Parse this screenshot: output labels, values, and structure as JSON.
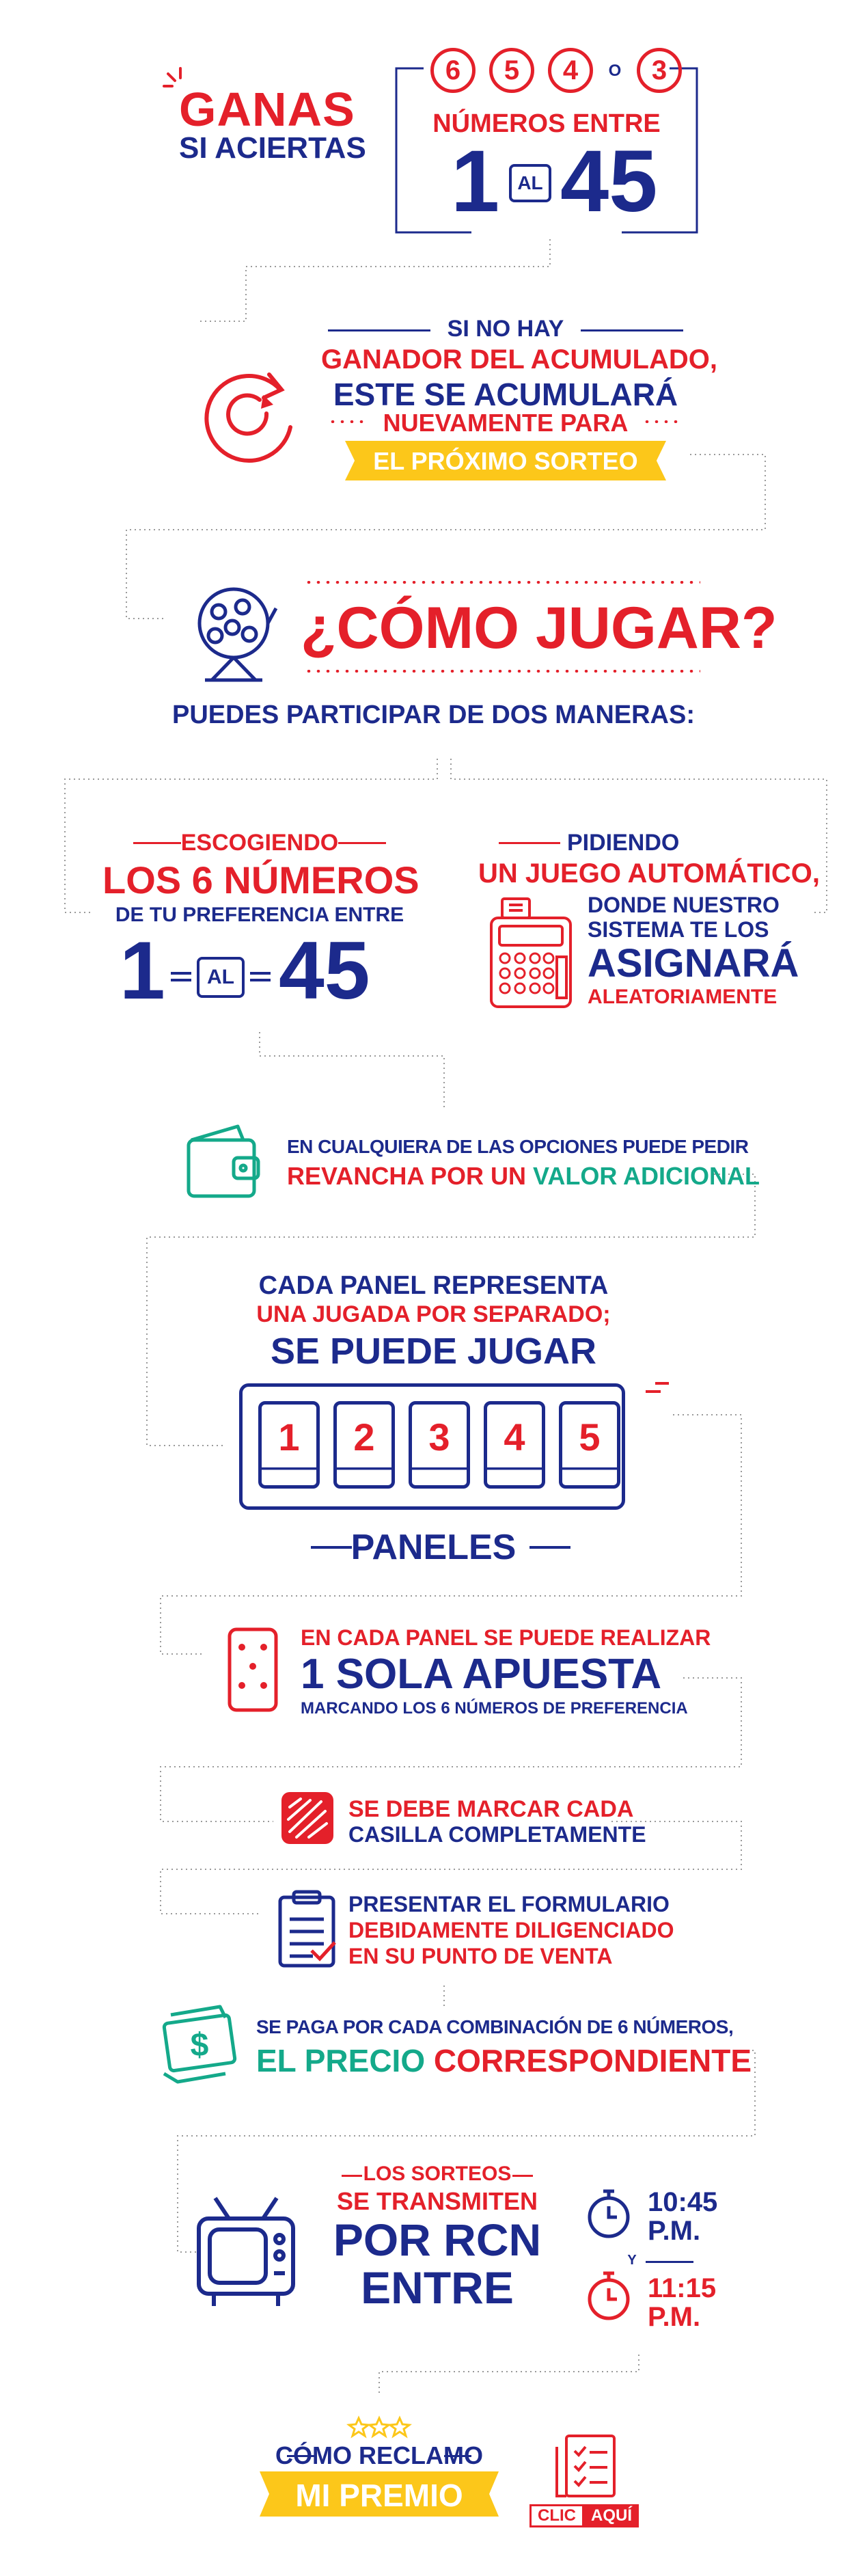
{
  "hero": {
    "ganas": "GANAS",
    "si_aciertas": "SI ACIERTAS",
    "hits": [
      "6",
      "5",
      "4",
      "3"
    ],
    "o": "O",
    "numeros_entre": "NÚMEROS ENTRE",
    "range_from": "1",
    "al": "AL",
    "range_to": "45"
  },
  "jackpot": {
    "line1": "SI NO HAY",
    "line2": "GANADOR DEL ACUMULADO,",
    "line3": "ESTE SE ACUMULARÁ",
    "line4": "NUEVAMENTE PARA",
    "line5": "EL PRÓXIMO SORTEO"
  },
  "how": {
    "title": "¿CÓMO JUGAR?",
    "subtitle": "PUEDES PARTICIPAR DE DOS MANERAS:"
  },
  "option_manual": {
    "line1": "ESCOGIENDO",
    "line2": "LOS 6 NÚMEROS",
    "line3": "DE TU PREFERENCIA ENTRE",
    "from": "1",
    "al": "AL",
    "to": "45"
  },
  "option_auto": {
    "line1": "PIDIENDO",
    "line2": "UN JUEGO AUTOMÁTICO,",
    "line3": "DONDE NUESTRO",
    "line4": "SISTEMA TE LOS",
    "line5": "ASIGNARÁ",
    "line6": "ALEATORIAMENTE"
  },
  "revancha": {
    "line1": "EN CUALQUIERA DE LAS OPCIONES PUEDE PEDIR",
    "part_red": "REVANCHA POR UN",
    "part_green": "VALOR ADICIONAL"
  },
  "panels": {
    "line1": "CADA PANEL REPRESENTA",
    "line2": "UNA JUGADA POR SEPARADO;",
    "line3": "SE PUEDE JUGAR",
    "numbers": [
      "1",
      "2",
      "3",
      "4",
      "5"
    ],
    "label": "PANELES"
  },
  "apuesta": {
    "line1": "EN CADA PANEL SE PUEDE REALIZAR",
    "line2": "1 SOLA APUESTA",
    "line3": "MARCANDO LOS 6 NÚMEROS DE PREFERENCIA"
  },
  "marcar": {
    "line1": "SE DEBE MARCAR CADA",
    "line2": "CASILLA COMPLETAMENTE"
  },
  "formulario": {
    "line1": "PRESENTAR EL FORMULARIO",
    "line2": "DEBIDAMENTE DILIGENCIADO",
    "line3": "EN SU PUNTO DE VENTA"
  },
  "precio": {
    "line1": "SE PAGA POR CADA COMBINACIÓN DE 6 NÚMEROS,",
    "part_green": "EL PRECIO",
    "part_red": "CORRESPONDIENTE"
  },
  "sorteos": {
    "line1": "LOS SORTEOS",
    "line2": "SE TRANSMITEN",
    "line3": "POR RCN",
    "line4": "ENTRE",
    "time1": "10:45",
    "pm1": "P.M.",
    "y": "Y",
    "time2": "11:15",
    "pm2": "P.M."
  },
  "reclamo": {
    "line1": "CÓMO RECLAMO",
    "line2": "MI PREMIO",
    "clic": "CLIC",
    "aqui": "AQUÍ"
  },
  "colors": {
    "blue": "#1c2a8c",
    "red": "#e4202a",
    "yellow": "#fcc71a",
    "green": "#14a98a"
  }
}
